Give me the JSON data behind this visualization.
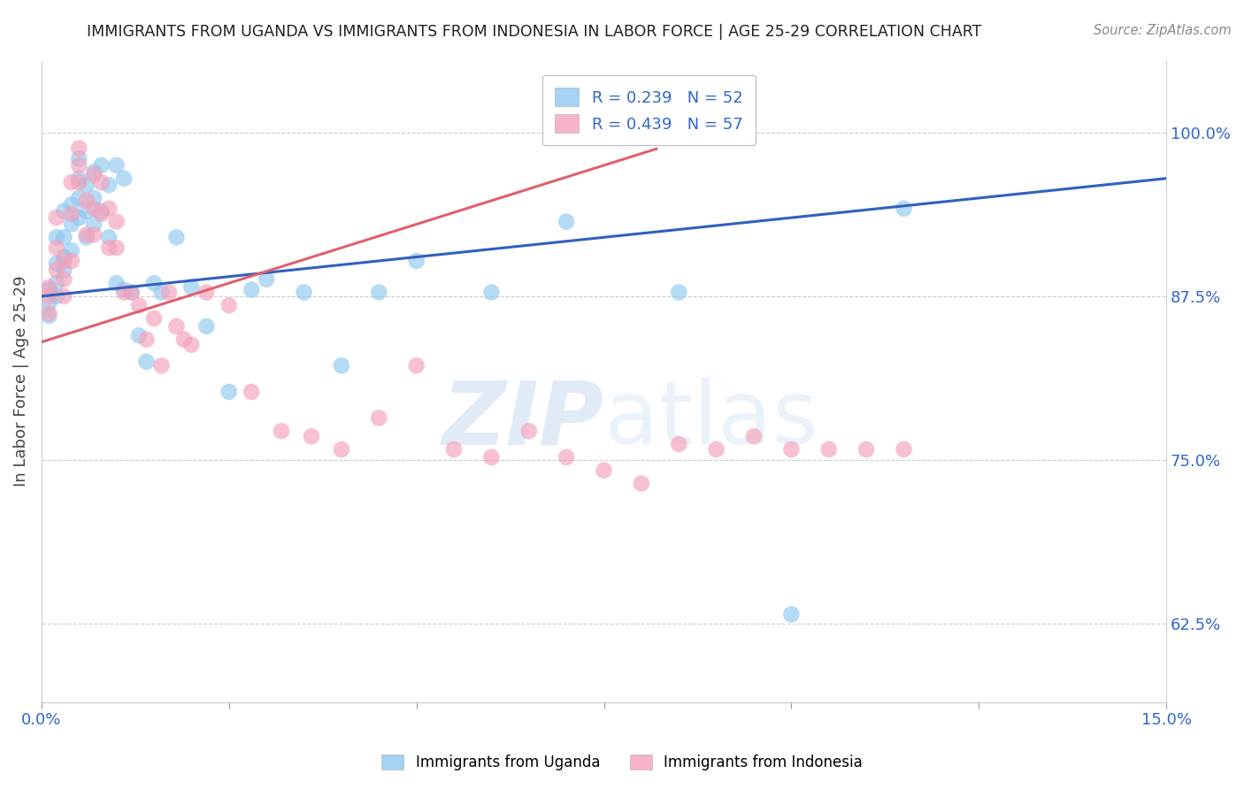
{
  "title": "IMMIGRANTS FROM UGANDA VS IMMIGRANTS FROM INDONESIA IN LABOR FORCE | AGE 25-29 CORRELATION CHART",
  "source": "Source: ZipAtlas.com",
  "ylabel": "In Labor Force | Age 25-29",
  "ytick_labels": [
    "62.5%",
    "75.0%",
    "87.5%",
    "100.0%"
  ],
  "ytick_values": [
    0.625,
    0.75,
    0.875,
    1.0
  ],
  "xmin": 0.0,
  "xmax": 0.15,
  "ymin": 0.565,
  "ymax": 1.055,
  "uganda_color": "#8EC8F0",
  "indonesia_color": "#F5A0BA",
  "uganda_R": 0.239,
  "uganda_N": 52,
  "indonesia_R": 0.439,
  "indonesia_N": 57,
  "uganda_line_color": "#3060C0",
  "indonesia_line_color": "#E06070",
  "uganda_x": [
    0.001,
    0.001,
    0.001,
    0.002,
    0.002,
    0.002,
    0.002,
    0.003,
    0.003,
    0.003,
    0.003,
    0.004,
    0.004,
    0.004,
    0.005,
    0.005,
    0.005,
    0.005,
    0.006,
    0.006,
    0.006,
    0.007,
    0.007,
    0.007,
    0.008,
    0.008,
    0.009,
    0.009,
    0.01,
    0.01,
    0.011,
    0.011,
    0.012,
    0.013,
    0.014,
    0.015,
    0.016,
    0.018,
    0.02,
    0.022,
    0.025,
    0.028,
    0.03,
    0.035,
    0.04,
    0.045,
    0.05,
    0.06,
    0.07,
    0.085,
    0.1,
    0.115
  ],
  "uganda_y": [
    0.88,
    0.87,
    0.86,
    0.92,
    0.9,
    0.885,
    0.875,
    0.94,
    0.92,
    0.905,
    0.895,
    0.945,
    0.93,
    0.91,
    0.98,
    0.965,
    0.95,
    0.935,
    0.96,
    0.94,
    0.92,
    0.97,
    0.95,
    0.93,
    0.975,
    0.94,
    0.96,
    0.92,
    0.975,
    0.885,
    0.965,
    0.88,
    0.878,
    0.845,
    0.825,
    0.885,
    0.878,
    0.92,
    0.882,
    0.852,
    0.802,
    0.88,
    0.888,
    0.878,
    0.822,
    0.878,
    0.902,
    0.878,
    0.932,
    0.878,
    0.632,
    0.942
  ],
  "indonesia_x": [
    0.001,
    0.001,
    0.001,
    0.002,
    0.002,
    0.002,
    0.003,
    0.003,
    0.003,
    0.004,
    0.004,
    0.004,
    0.005,
    0.005,
    0.005,
    0.006,
    0.006,
    0.007,
    0.007,
    0.007,
    0.008,
    0.008,
    0.009,
    0.009,
    0.01,
    0.01,
    0.011,
    0.012,
    0.013,
    0.014,
    0.015,
    0.016,
    0.017,
    0.018,
    0.019,
    0.02,
    0.022,
    0.025,
    0.028,
    0.032,
    0.036,
    0.04,
    0.045,
    0.05,
    0.055,
    0.06,
    0.065,
    0.07,
    0.075,
    0.08,
    0.085,
    0.09,
    0.095,
    0.1,
    0.105,
    0.11,
    0.115
  ],
  "indonesia_y": [
    0.882,
    0.875,
    0.862,
    0.935,
    0.912,
    0.895,
    0.902,
    0.888,
    0.875,
    0.962,
    0.938,
    0.902,
    0.988,
    0.975,
    0.962,
    0.948,
    0.922,
    0.968,
    0.942,
    0.922,
    0.962,
    0.938,
    0.942,
    0.912,
    0.932,
    0.912,
    0.878,
    0.878,
    0.868,
    0.842,
    0.858,
    0.822,
    0.878,
    0.852,
    0.842,
    0.838,
    0.878,
    0.868,
    0.802,
    0.772,
    0.768,
    0.758,
    0.782,
    0.822,
    0.758,
    0.752,
    0.772,
    0.752,
    0.742,
    0.732,
    0.762,
    0.758,
    0.768,
    0.758,
    0.758,
    0.758,
    0.758
  ],
  "watermark_zip": "ZIP",
  "watermark_atlas": "atlas",
  "background_color": "#ffffff",
  "grid_color": "#cccccc",
  "spine_color": "#cccccc"
}
